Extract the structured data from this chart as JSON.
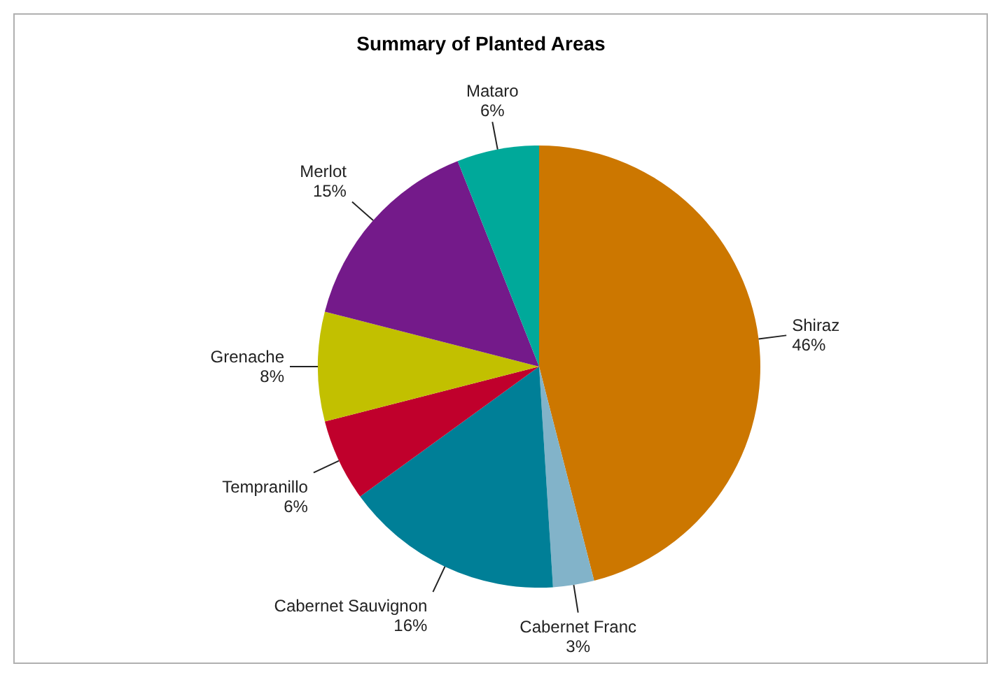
{
  "chart_data": {
    "type": "pie",
    "title": "Summary of Planted Areas",
    "categories": [
      "Shiraz",
      "Cabernet Franc",
      "Cabernet Sauvignon",
      "Tempranillo",
      "Grenache",
      "Merlot",
      "Mataro"
    ],
    "values": [
      46,
      3,
      16,
      6,
      8,
      15,
      6
    ],
    "value_labels": [
      "46%",
      "3%",
      "16%",
      "6%",
      "8%",
      "15%",
      "6%"
    ],
    "colors": [
      "#cc7700",
      "#82b3c9",
      "#007f97",
      "#c0002c",
      "#c2c000",
      "#741a8a",
      "#00a99a"
    ]
  }
}
